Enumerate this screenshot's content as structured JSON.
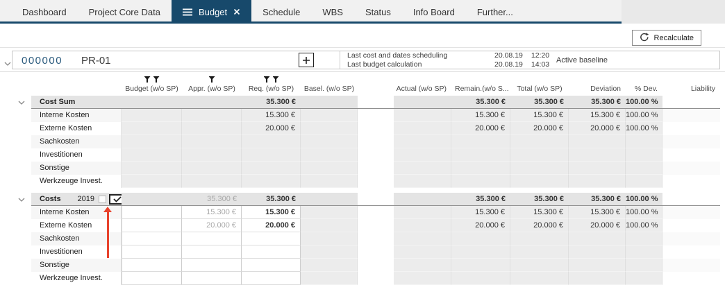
{
  "colors": {
    "active_tab_bg": "#17496b",
    "tab_underline": "#17496b",
    "annotation_arrow": "#e8432d",
    "project_id_text": "#2a5a7d",
    "section_header_bg": "#e4e4e4",
    "readonly_cell_bg": "#ececec"
  },
  "tabs": {
    "items": [
      {
        "label": "Dashboard",
        "active": false
      },
      {
        "label": "Project Core Data",
        "active": false
      },
      {
        "label": "Budget",
        "active": true
      },
      {
        "label": "Schedule",
        "active": false
      },
      {
        "label": "WBS",
        "active": false
      },
      {
        "label": "Status",
        "active": false
      },
      {
        "label": "Info Board",
        "active": false
      },
      {
        "label": "Further...",
        "active": false
      }
    ]
  },
  "toolbar": {
    "recalculate": "Recalculate"
  },
  "project": {
    "id": "000000",
    "code": "PR-01",
    "baseline_status": "Active baseline",
    "info": [
      {
        "label": "Last cost and dates scheduling",
        "date": "20.08.19",
        "time": "12:20"
      },
      {
        "label": "Last budget calculation",
        "date": "20.08.19",
        "time": "14:03"
      }
    ]
  },
  "table": {
    "columns": [
      {
        "key": "budget",
        "label": "Budget (w/o SP)",
        "funnels": 2
      },
      {
        "key": "appr",
        "label": "Appr. (w/o SP)",
        "funnels": 1
      },
      {
        "key": "req",
        "label": "Req. (w/o SP)",
        "funnels": 2
      },
      {
        "key": "basel",
        "label": "Basel. (w/o SP)",
        "funnels": 0
      },
      {
        "key": "actual",
        "label": "Actual (w/o SP)",
        "funnels": 0
      },
      {
        "key": "remain",
        "label": "Remain.(w/o S...",
        "funnels": 0
      },
      {
        "key": "total",
        "label": "Total (w/o SP)",
        "funnels": 0
      },
      {
        "key": "deviation",
        "label": "Deviation",
        "funnels": 0
      },
      {
        "key": "pdev",
        "label": "% Dev.",
        "funnels": 0
      },
      {
        "key": "liability",
        "label": "Liability",
        "funnels": 0
      }
    ],
    "sections": [
      {
        "title": "Cost Sum",
        "header": {
          "req": "35.300 €",
          "remain": "35.300 €",
          "total": "35.300 €",
          "deviation": "35.300 €",
          "pdev": "100.00 %"
        },
        "rows": [
          {
            "label": "Interne Kosten",
            "req": "15.300 €",
            "remain": "15.300 €",
            "total": "15.300 €",
            "deviation": "15.300 €",
            "pdev": "100.00 %"
          },
          {
            "label": "Externe Kosten",
            "req": "20.000 €",
            "remain": "20.000 €",
            "total": "20.000 €",
            "deviation": "20.000 €",
            "pdev": "100.00 %"
          },
          {
            "label": "Sachkosten"
          },
          {
            "label": "Investitionen"
          },
          {
            "label": "Sonstige"
          },
          {
            "label": "Werkzeuge Invest."
          }
        ]
      },
      {
        "title": "Costs",
        "year": "2019",
        "checkbox_unchecked": true,
        "checkbox_checked": true,
        "header": {
          "appr": "35.300 €",
          "req": "35.300 €",
          "remain": "35.300 €",
          "total": "35.300 €",
          "deviation": "35.300 €",
          "pdev": "100.00 %"
        },
        "rows": [
          {
            "label": "Interne Kosten",
            "appr": "15.300 €",
            "req": "15.300 €",
            "remain": "15.300 €",
            "total": "15.300 €",
            "deviation": "15.300 €",
            "pdev": "100.00 %"
          },
          {
            "label": "Externe Kosten",
            "appr": "20.000 €",
            "req": "20.000 €",
            "remain": "20.000 €",
            "total": "20.000 €",
            "deviation": "20.000 €",
            "pdev": "100.00 %"
          },
          {
            "label": "Sachkosten"
          },
          {
            "label": "Investitionen"
          },
          {
            "label": "Sonstige"
          },
          {
            "label": "Werkzeuge Invest."
          }
        ]
      }
    ]
  }
}
